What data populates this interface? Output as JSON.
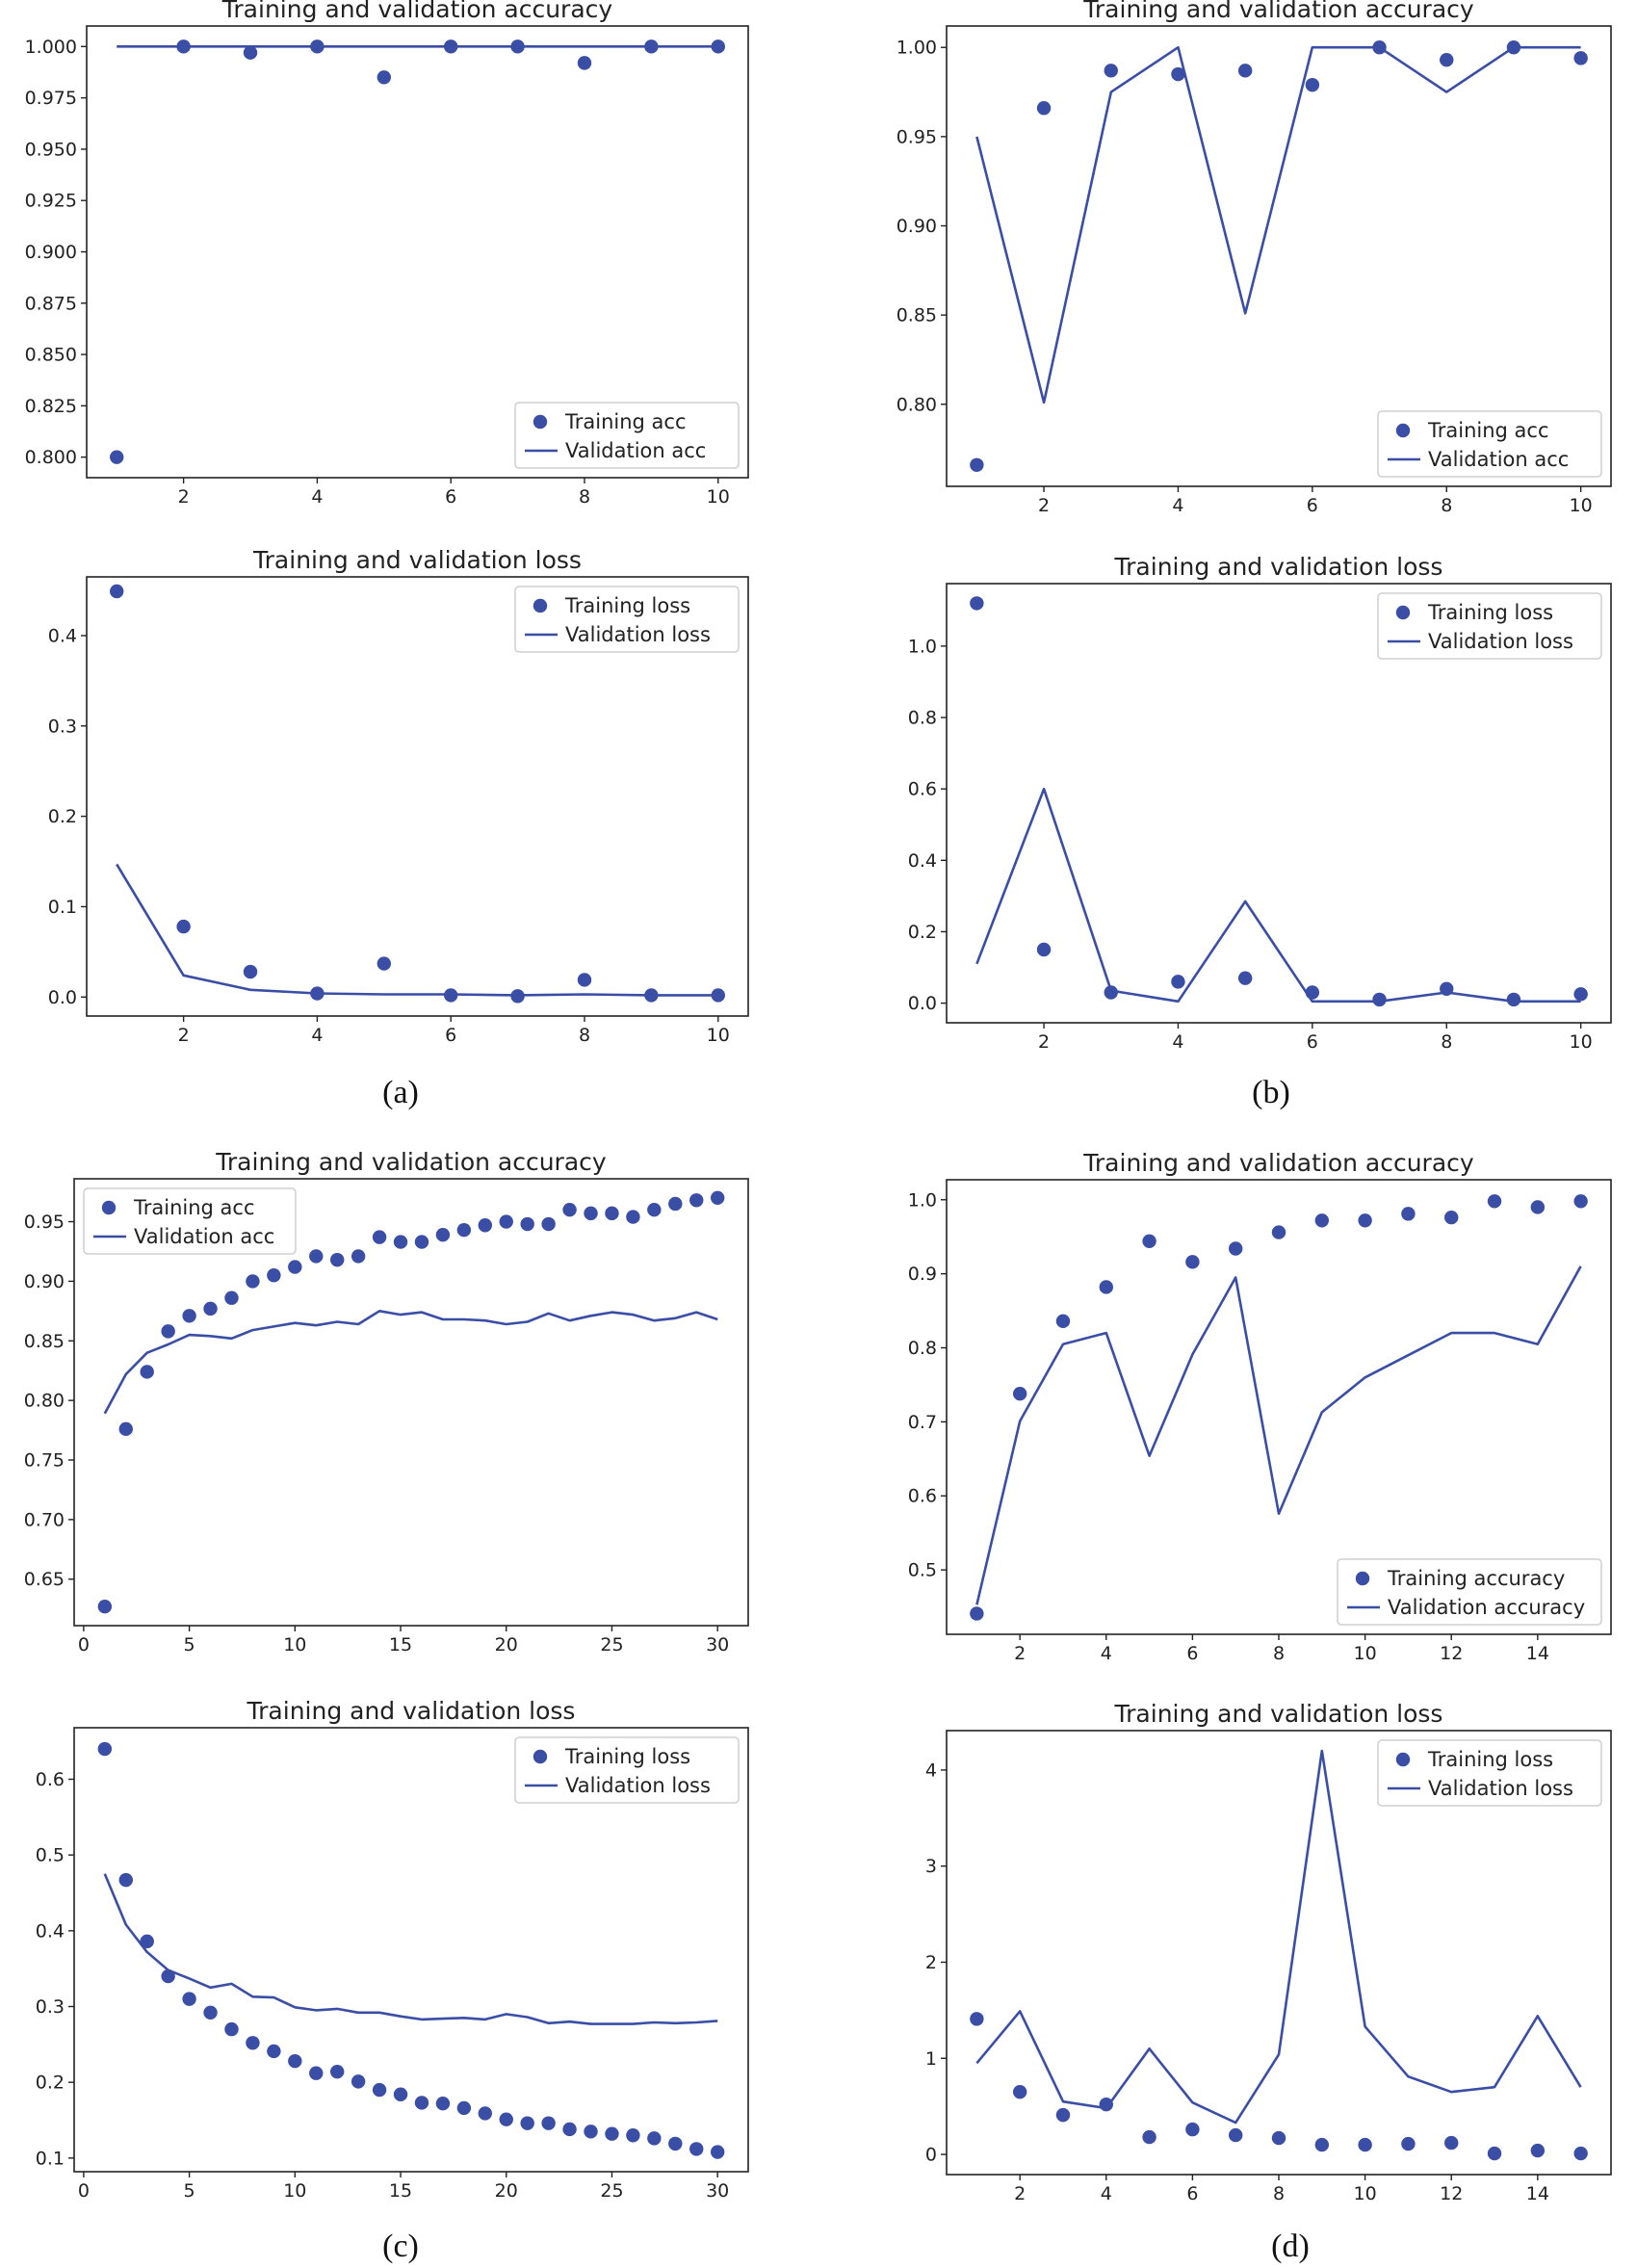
{
  "colors": {
    "series": "#3a4ea6",
    "axis": "#222222"
  },
  "captions": [
    "(a)",
    "(b)",
    "(c)",
    "(d)"
  ],
  "chart_data": [
    {
      "type": "scatter+line",
      "panel": "(a)",
      "title": "Training and validation accuracy",
      "x": [
        1,
        2,
        3,
        4,
        5,
        6,
        7,
        8,
        9,
        10
      ],
      "series": [
        {
          "name": "Training acc",
          "style": "dots",
          "values": [
            0.8,
            1.0,
            0.997,
            1.0,
            0.985,
            1.0,
            1.0,
            0.992,
            1.0,
            1.0
          ]
        },
        {
          "name": "Validation acc",
          "style": "line",
          "values": [
            1,
            1,
            1,
            1,
            1,
            1,
            1,
            1,
            1,
            1
          ]
        }
      ],
      "xlim": [
        0.55,
        10.45
      ],
      "ylim": [
        0.79,
        1.01
      ],
      "xticks": [
        2,
        4,
        6,
        8,
        10
      ],
      "xtick_labels": [
        "2",
        "4",
        "6",
        "8",
        "10"
      ],
      "yticks": [
        0.8,
        0.825,
        0.85,
        0.875,
        0.9,
        0.925,
        0.95,
        0.975,
        1.0
      ],
      "ytick_labels": [
        "0.800",
        "0.825",
        "0.850",
        "0.875",
        "0.900",
        "0.925",
        "0.950",
        "0.975",
        "1.000"
      ],
      "legend_position": "lower-right"
    },
    {
      "type": "scatter+line",
      "panel": "(a)",
      "title": "Training and validation loss",
      "x": [
        1,
        2,
        3,
        4,
        5,
        6,
        7,
        8,
        9,
        10
      ],
      "series": [
        {
          "name": "Training loss",
          "style": "dots",
          "values": [
            0.449,
            0.078,
            0.028,
            0.004,
            0.037,
            0.002,
            0.001,
            0.019,
            0.002,
            0.002
          ]
        },
        {
          "name": "Validation loss",
          "style": "line",
          "values": [
            0.147,
            0.024,
            0.008,
            0.004,
            0.003,
            0.003,
            0.002,
            0.003,
            0.002,
            0.002
          ]
        }
      ],
      "xlim": [
        0.55,
        10.45
      ],
      "ylim": [
        -0.021,
        0.465
      ],
      "xticks": [
        2,
        4,
        6,
        8,
        10
      ],
      "xtick_labels": [
        "2",
        "4",
        "6",
        "8",
        "10"
      ],
      "yticks": [
        0,
        0.1,
        0.2,
        0.3,
        0.4
      ],
      "ytick_labels": [
        "0.0",
        "0.1",
        "0.2",
        "0.3",
        "0.4"
      ],
      "legend_position": "upper-right"
    },
    {
      "type": "scatter+line",
      "panel": "(b)",
      "title": "Training and validation accuracy",
      "x": [
        1,
        2,
        3,
        4,
        5,
        6,
        7,
        8,
        9,
        10
      ],
      "series": [
        {
          "name": "Training acc",
          "style": "dots",
          "values": [
            0.766,
            0.966,
            0.987,
            0.985,
            0.987,
            0.979,
            1.0,
            0.993,
            1.0,
            0.994
          ]
        },
        {
          "name": "Validation acc",
          "style": "line",
          "values": [
            0.95,
            0.801,
            0.975,
            1.0,
            0.851,
            1.0,
            1.0,
            0.975,
            1.0,
            1.0
          ]
        }
      ],
      "xlim": [
        0.55,
        10.45
      ],
      "ylim": [
        0.754,
        1.012
      ],
      "xticks": [
        2,
        4,
        6,
        8,
        10
      ],
      "xtick_labels": [
        "2",
        "4",
        "6",
        "8",
        "10"
      ],
      "yticks": [
        0.8,
        0.85,
        0.9,
        0.95,
        1.0
      ],
      "ytick_labels": [
        "0.80",
        "0.85",
        "0.90",
        "0.95",
        "1.00"
      ],
      "legend_position": "lower-right"
    },
    {
      "type": "scatter+line",
      "panel": "(b)",
      "title": "Training and validation loss",
      "x": [
        1,
        2,
        3,
        4,
        5,
        6,
        7,
        8,
        9,
        10
      ],
      "series": [
        {
          "name": "Training loss",
          "style": "dots",
          "values": [
            1.12,
            0.15,
            0.03,
            0.06,
            0.07,
            0.03,
            0.01,
            0.04,
            0.01,
            0.025
          ]
        },
        {
          "name": "Validation loss",
          "style": "line",
          "values": [
            0.11,
            0.6,
            0.035,
            0.005,
            0.285,
            0.005,
            0.005,
            0.03,
            0.005,
            0.005
          ]
        }
      ],
      "xlim": [
        0.55,
        10.45
      ],
      "ylim": [
        -0.055,
        1.175
      ],
      "xticks": [
        2,
        4,
        6,
        8,
        10
      ],
      "xtick_labels": [
        "2",
        "4",
        "6",
        "8",
        "10"
      ],
      "yticks": [
        0,
        0.2,
        0.4,
        0.6,
        0.8,
        1.0
      ],
      "ytick_labels": [
        "0.0",
        "0.2",
        "0.4",
        "0.6",
        "0.8",
        "1.0"
      ],
      "legend_position": "upper-right"
    },
    {
      "type": "scatter+line",
      "panel": "(c)",
      "title": "Training and validation accuracy",
      "x": [
        1,
        2,
        3,
        4,
        5,
        6,
        7,
        8,
        9,
        10,
        11,
        12,
        13,
        14,
        15,
        16,
        17,
        18,
        19,
        20,
        21,
        22,
        23,
        24,
        25,
        26,
        27,
        28,
        29,
        30
      ],
      "series": [
        {
          "name": "Training acc",
          "style": "dots",
          "values": [
            0.627,
            0.776,
            0.824,
            0.858,
            0.871,
            0.877,
            0.886,
            0.9,
            0.905,
            0.912,
            0.921,
            0.918,
            0.921,
            0.937,
            0.933,
            0.933,
            0.939,
            0.943,
            0.947,
            0.95,
            0.948,
            0.948,
            0.96,
            0.957,
            0.957,
            0.954,
            0.96,
            0.965,
            0.968,
            0.97
          ]
        },
        {
          "name": "Validation acc",
          "style": "line",
          "values": [
            0.789,
            0.822,
            0.84,
            0.847,
            0.855,
            0.854,
            0.852,
            0.859,
            0.862,
            0.865,
            0.863,
            0.866,
            0.864,
            0.875,
            0.872,
            0.874,
            0.868,
            0.868,
            0.867,
            0.864,
            0.866,
            0.873,
            0.867,
            0.871,
            0.874,
            0.872,
            0.867,
            0.869,
            0.874,
            0.868
          ]
        }
      ],
      "xlim": [
        -0.45,
        31.45
      ],
      "ylim": [
        0.611,
        0.986
      ],
      "xticks": [
        0,
        5,
        10,
        15,
        20,
        25,
        30
      ],
      "xtick_labels": [
        "0",
        "5",
        "10",
        "15",
        "20",
        "25",
        "30"
      ],
      "yticks": [
        0.65,
        0.7,
        0.75,
        0.8,
        0.85,
        0.9,
        0.95
      ],
      "ytick_labels": [
        "0.65",
        "0.70",
        "0.75",
        "0.80",
        "0.85",
        "0.90",
        "0.95"
      ],
      "legend_position": "upper-left"
    },
    {
      "type": "scatter+line",
      "panel": "(c)",
      "title": "Training and validation loss",
      "x": [
        1,
        2,
        3,
        4,
        5,
        6,
        7,
        8,
        9,
        10,
        11,
        12,
        13,
        14,
        15,
        16,
        17,
        18,
        19,
        20,
        21,
        22,
        23,
        24,
        25,
        26,
        27,
        28,
        29,
        30
      ],
      "series": [
        {
          "name": "Training loss",
          "style": "dots",
          "values": [
            0.64,
            0.467,
            0.386,
            0.34,
            0.31,
            0.292,
            0.27,
            0.252,
            0.241,
            0.228,
            0.212,
            0.214,
            0.201,
            0.19,
            0.184,
            0.173,
            0.172,
            0.166,
            0.159,
            0.151,
            0.146,
            0.146,
            0.138,
            0.135,
            0.132,
            0.13,
            0.126,
            0.119,
            0.112,
            0.108
          ]
        },
        {
          "name": "Validation loss",
          "style": "line",
          "values": [
            0.475,
            0.408,
            0.372,
            0.348,
            0.337,
            0.325,
            0.33,
            0.313,
            0.312,
            0.299,
            0.295,
            0.297,
            0.292,
            0.292,
            0.287,
            0.283,
            0.284,
            0.285,
            0.283,
            0.29,
            0.286,
            0.278,
            0.28,
            0.277,
            0.277,
            0.277,
            0.279,
            0.278,
            0.279,
            0.281
          ]
        }
      ],
      "xlim": [
        -0.45,
        31.45
      ],
      "ylim": [
        0.082,
        0.668
      ],
      "xticks": [
        0,
        5,
        10,
        15,
        20,
        25,
        30
      ],
      "xtick_labels": [
        "0",
        "5",
        "10",
        "15",
        "20",
        "25",
        "30"
      ],
      "yticks": [
        0.1,
        0.2,
        0.3,
        0.4,
        0.5,
        0.6
      ],
      "ytick_labels": [
        "0.1",
        "0.2",
        "0.3",
        "0.4",
        "0.5",
        "0.6"
      ],
      "legend_position": "upper-right"
    },
    {
      "type": "scatter+line",
      "panel": "(d)",
      "title": "Training and validation accuracy",
      "x": [
        1,
        2,
        3,
        4,
        5,
        6,
        7,
        8,
        9,
        10,
        11,
        12,
        13,
        14,
        15
      ],
      "series": [
        {
          "name": "Training accuracy",
          "style": "dots",
          "values": [
            0.441,
            0.738,
            0.836,
            0.882,
            0.944,
            0.916,
            0.934,
            0.956,
            0.972,
            0.972,
            0.981,
            0.976,
            0.998,
            0.99,
            0.998
          ]
        },
        {
          "name": "Validation accuracy",
          "style": "line",
          "values": [
            0.453,
            0.701,
            0.805,
            0.82,
            0.654,
            0.791,
            0.895,
            0.576,
            0.713,
            0.76,
            0.79,
            0.82,
            0.82,
            0.805,
            0.91
          ]
        }
      ],
      "xlim": [
        0.3,
        15.7
      ],
      "ylim": [
        0.413,
        1.027
      ],
      "xticks": [
        2,
        4,
        6,
        8,
        10,
        12,
        14
      ],
      "xtick_labels": [
        "2",
        "4",
        "6",
        "8",
        "10",
        "12",
        "14"
      ],
      "yticks": [
        0.5,
        0.6,
        0.7,
        0.8,
        0.9,
        1.0
      ],
      "ytick_labels": [
        "0.5",
        "0.6",
        "0.7",
        "0.8",
        "0.9",
        "1.0"
      ],
      "legend_position": "lower-right"
    },
    {
      "type": "scatter+line",
      "panel": "(d)",
      "title": "Training and validation loss",
      "x": [
        1,
        2,
        3,
        4,
        5,
        6,
        7,
        8,
        9,
        10,
        11,
        12,
        13,
        14,
        15
      ],
      "series": [
        {
          "name": "Training loss",
          "style": "dots",
          "values": [
            1.41,
            0.65,
            0.41,
            0.52,
            0.18,
            0.26,
            0.2,
            0.17,
            0.1,
            0.1,
            0.11,
            0.12,
            0.01,
            0.04,
            0.01
          ]
        },
        {
          "name": "Validation loss",
          "style": "line",
          "values": [
            0.95,
            1.49,
            0.55,
            0.48,
            1.1,
            0.54,
            0.33,
            1.04,
            4.2,
            1.33,
            0.81,
            0.65,
            0.7,
            1.44,
            0.7
          ]
        }
      ],
      "xlim": [
        0.3,
        15.7
      ],
      "ylim": [
        -0.21,
        4.41
      ],
      "xticks": [
        2,
        4,
        6,
        8,
        10,
        12,
        14
      ],
      "xtick_labels": [
        "2",
        "4",
        "6",
        "8",
        "10",
        "12",
        "14"
      ],
      "yticks": [
        0,
        1,
        2,
        3,
        4
      ],
      "ytick_labels": [
        "0",
        "1",
        "2",
        "3",
        "4"
      ],
      "legend_position": "upper-right"
    }
  ]
}
